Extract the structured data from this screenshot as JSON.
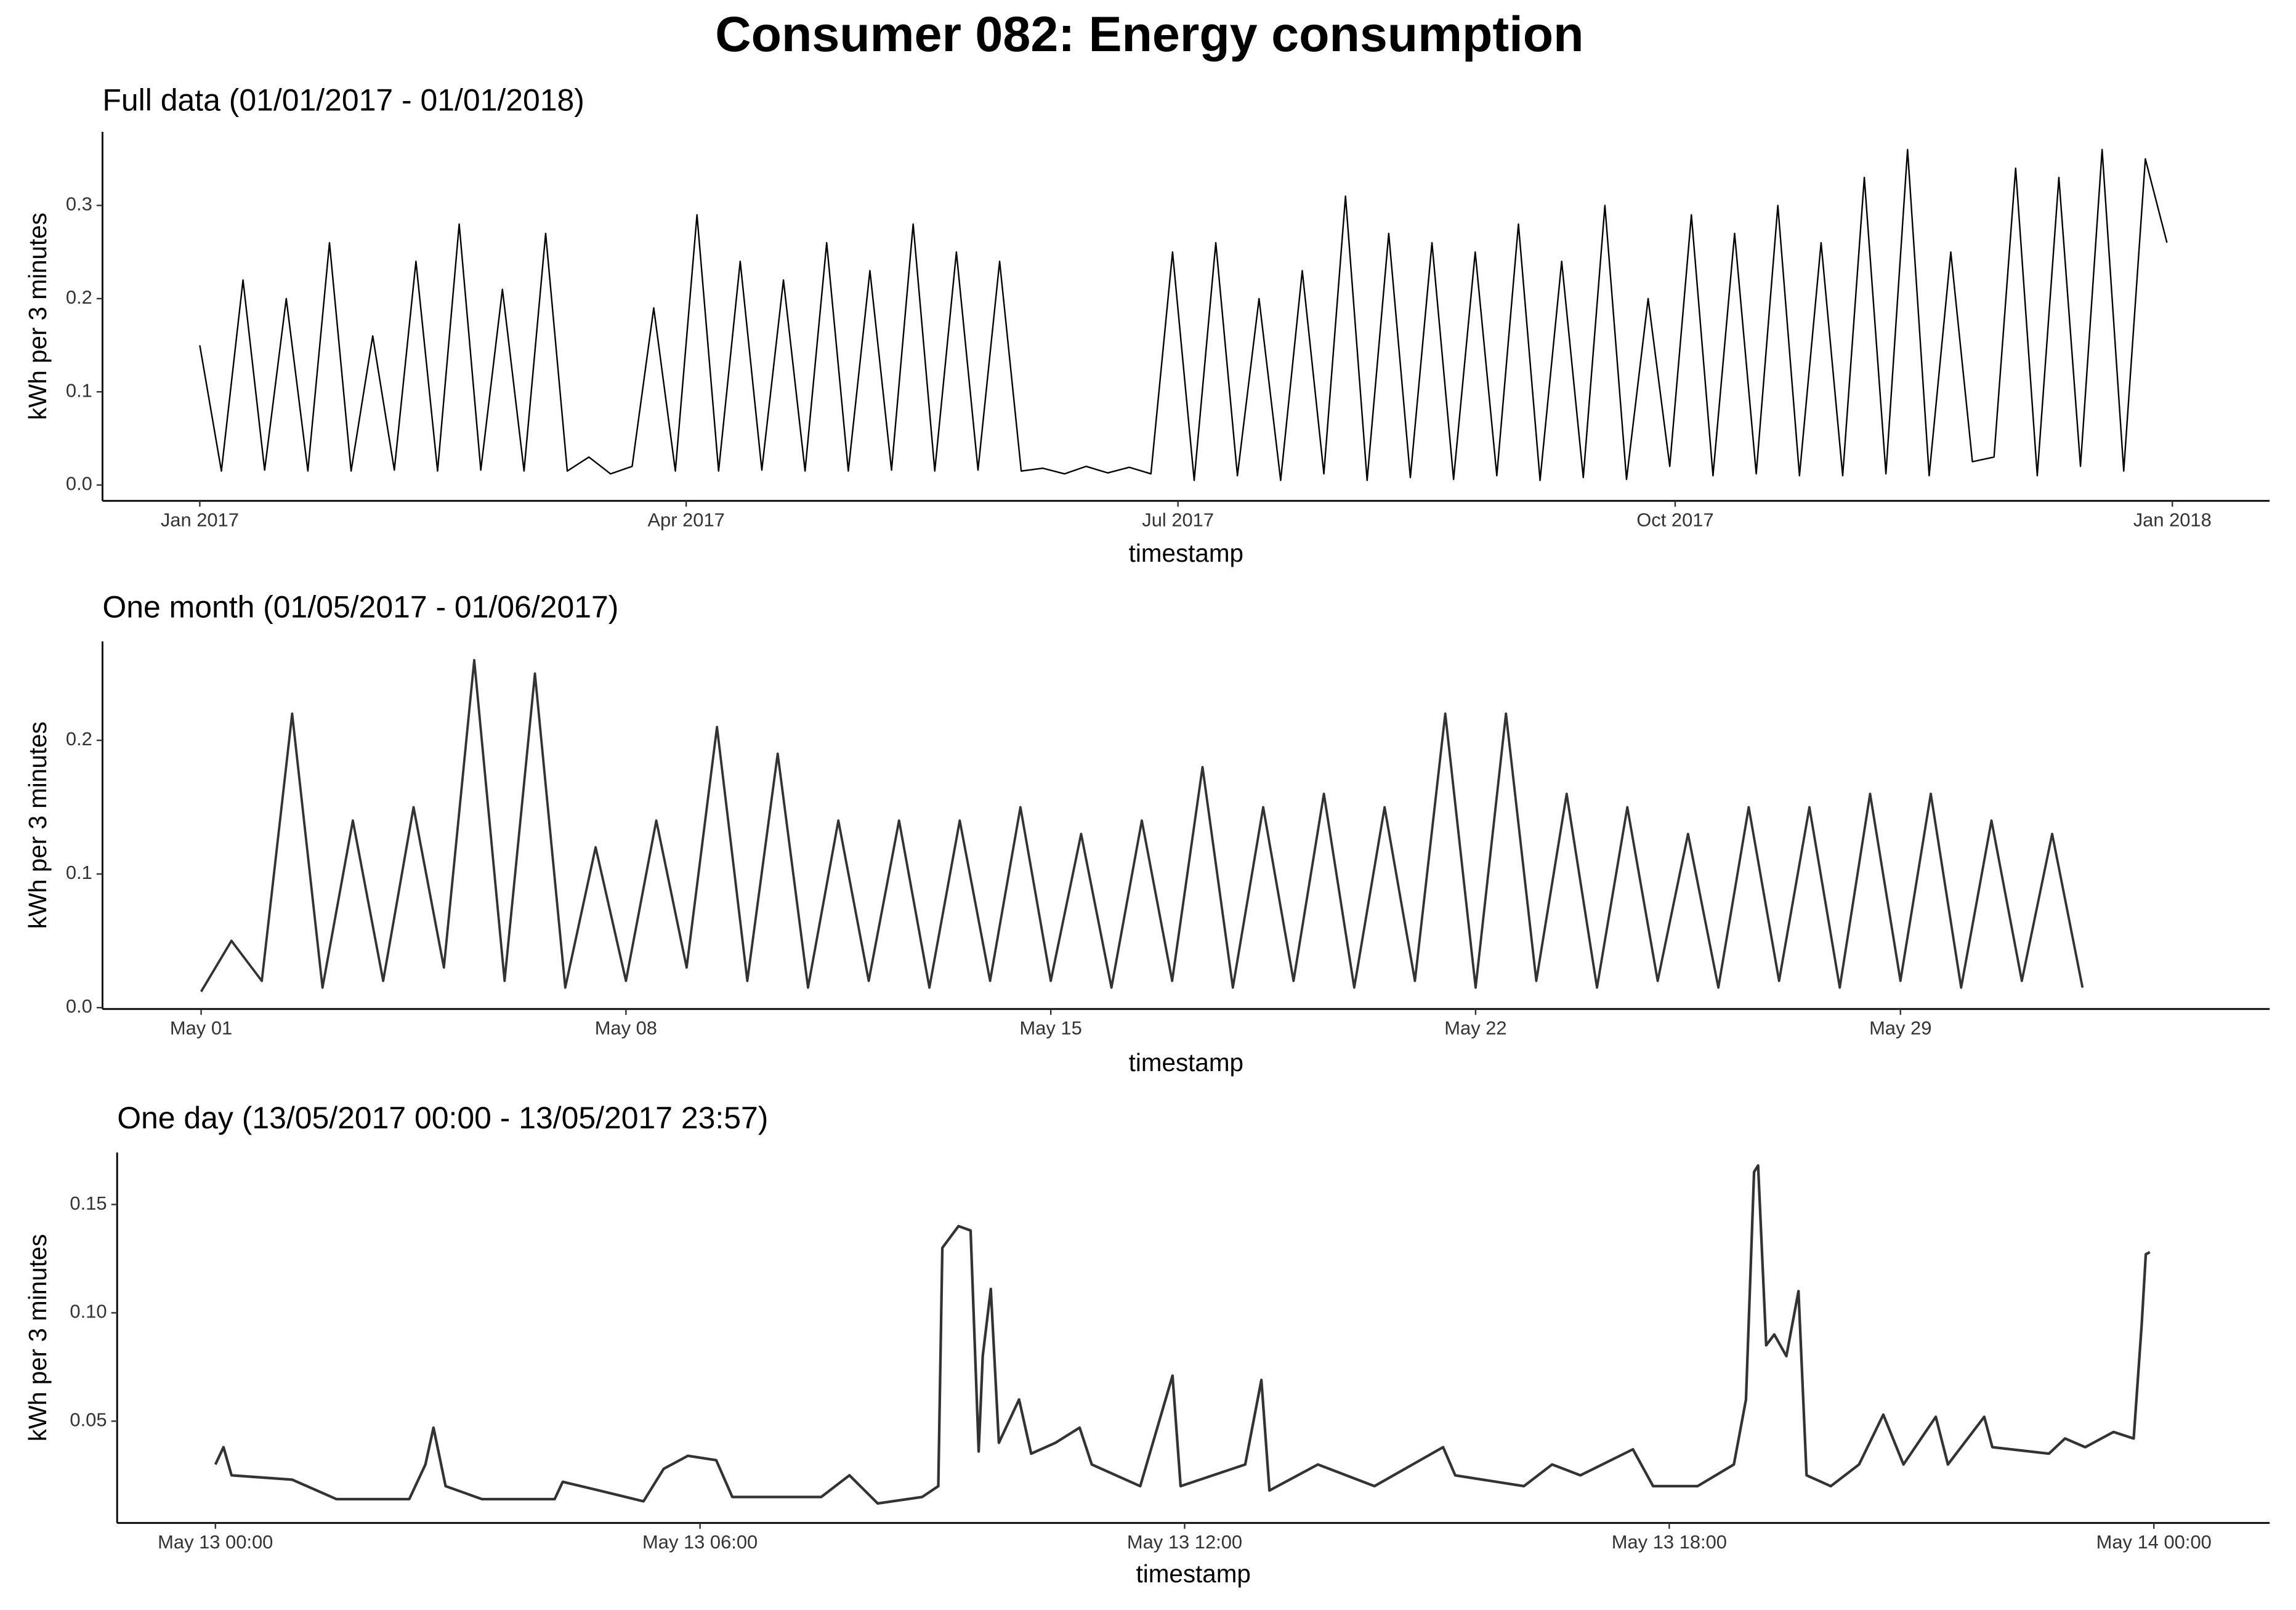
{
  "title": "Consumer 082: Energy consumption",
  "chart_data": [
    {
      "type": "line",
      "title": "Full data (01/01/2017 - 01/01/2018)",
      "xlabel": "timestamp",
      "ylabel": "kWh per 3 minutes",
      "color": "#000000",
      "x": [
        "2017-01-01",
        "2017-01-05",
        "2017-01-09",
        "2017-01-13",
        "2017-01-17",
        "2017-01-21",
        "2017-01-25",
        "2017-01-29",
        "2017-02-02",
        "2017-02-06",
        "2017-02-10",
        "2017-02-14",
        "2017-02-18",
        "2017-02-22",
        "2017-02-26",
        "2017-03-02",
        "2017-03-06",
        "2017-03-10",
        "2017-03-14",
        "2017-03-18",
        "2017-03-22",
        "2017-03-26",
        "2017-03-30",
        "2017-04-03",
        "2017-04-07",
        "2017-04-11",
        "2017-04-15",
        "2017-04-19",
        "2017-04-23",
        "2017-04-27",
        "2017-05-01",
        "2017-05-05",
        "2017-05-09",
        "2017-05-13",
        "2017-05-17",
        "2017-05-21",
        "2017-05-25",
        "2017-05-29",
        "2017-06-02",
        "2017-06-06",
        "2017-06-10",
        "2017-06-14",
        "2017-06-18",
        "2017-06-22",
        "2017-06-26",
        "2017-06-30",
        "2017-07-04",
        "2017-07-08",
        "2017-07-12",
        "2017-07-16",
        "2017-07-20",
        "2017-07-24",
        "2017-07-28",
        "2017-08-01",
        "2017-08-05",
        "2017-08-09",
        "2017-08-13",
        "2017-08-17",
        "2017-08-21",
        "2017-08-25",
        "2017-08-29",
        "2017-09-02",
        "2017-09-06",
        "2017-09-10",
        "2017-09-14",
        "2017-09-18",
        "2017-09-22",
        "2017-09-26",
        "2017-09-30",
        "2017-10-04",
        "2017-10-08",
        "2017-10-12",
        "2017-10-16",
        "2017-10-20",
        "2017-10-24",
        "2017-10-28",
        "2017-11-01",
        "2017-11-05",
        "2017-11-09",
        "2017-11-13",
        "2017-11-17",
        "2017-11-21",
        "2017-11-25",
        "2017-11-29",
        "2017-12-03",
        "2017-12-07",
        "2017-12-11",
        "2017-12-15",
        "2017-12-19",
        "2017-12-23",
        "2017-12-27",
        "2017-12-31"
      ],
      "values": [
        0.15,
        0.015,
        0.22,
        0.016,
        0.2,
        0.015,
        0.26,
        0.015,
        0.16,
        0.016,
        0.24,
        0.015,
        0.28,
        0.016,
        0.21,
        0.015,
        0.27,
        0.015,
        0.03,
        0.012,
        0.02,
        0.19,
        0.015,
        0.29,
        0.015,
        0.24,
        0.016,
        0.22,
        0.015,
        0.26,
        0.015,
        0.23,
        0.016,
        0.28,
        0.015,
        0.25,
        0.016,
        0.24,
        0.015,
        0.018,
        0.012,
        0.02,
        0.013,
        0.019,
        0.012,
        0.25,
        0.005,
        0.26,
        0.01,
        0.2,
        0.005,
        0.23,
        0.012,
        0.31,
        0.005,
        0.27,
        0.008,
        0.26,
        0.006,
        0.25,
        0.01,
        0.28,
        0.005,
        0.24,
        0.008,
        0.3,
        0.006,
        0.2,
        0.02,
        0.29,
        0.01,
        0.27,
        0.012,
        0.3,
        0.01,
        0.26,
        0.01,
        0.33,
        0.012,
        0.36,
        0.01,
        0.25,
        0.025,
        0.03,
        0.34,
        0.01,
        0.33,
        0.02,
        0.36,
        0.015,
        0.35,
        0.26
      ],
      "xlim": [
        "2016-12-14",
        "2018-01-19"
      ],
      "xticks": [
        {
          "value": "2017-01-01",
          "label": "Jan 2017"
        },
        {
          "value": "2017-04-01",
          "label": "Apr 2017"
        },
        {
          "value": "2017-07-01",
          "label": "Jul 2017"
        },
        {
          "value": "2017-10-01",
          "label": "Oct 2017"
        },
        {
          "value": "2018-01-01",
          "label": "Jan 2018"
        }
      ],
      "ylim": [
        -0.017,
        0.379
      ],
      "yticks": [
        {
          "value": 0,
          "label": "0.0"
        },
        0.1,
        0.2,
        0.3
      ]
    },
    {
      "type": "line",
      "title": "One month (01/05/2017 - 01/06/2017)",
      "xlabel": "timestamp",
      "ylabel": "kWh per 3 minutes",
      "color": "#333333",
      "x": [
        "2017-05-01 00:00",
        "2017-05-01 12:00",
        "2017-05-02 00:00",
        "2017-05-02 12:00",
        "2017-05-03 00:00",
        "2017-05-03 12:00",
        "2017-05-04 00:00",
        "2017-05-04 12:00",
        "2017-05-05 00:00",
        "2017-05-05 12:00",
        "2017-05-06 00:00",
        "2017-05-06 12:00",
        "2017-05-07 00:00",
        "2017-05-07 12:00",
        "2017-05-08 00:00",
        "2017-05-08 12:00",
        "2017-05-09 00:00",
        "2017-05-09 12:00",
        "2017-05-10 00:00",
        "2017-05-10 12:00",
        "2017-05-11 00:00",
        "2017-05-11 12:00",
        "2017-05-12 00:00",
        "2017-05-12 12:00",
        "2017-05-13 00:00",
        "2017-05-13 12:00",
        "2017-05-14 00:00",
        "2017-05-14 12:00",
        "2017-05-15 00:00",
        "2017-05-15 12:00",
        "2017-05-16 00:00",
        "2017-05-16 12:00",
        "2017-05-17 00:00",
        "2017-05-17 12:00",
        "2017-05-18 00:00",
        "2017-05-18 12:00",
        "2017-05-19 00:00",
        "2017-05-19 12:00",
        "2017-05-20 00:00",
        "2017-05-20 12:00",
        "2017-05-21 00:00",
        "2017-05-21 12:00",
        "2017-05-22 00:00",
        "2017-05-22 12:00",
        "2017-05-23 00:00",
        "2017-05-23 12:00",
        "2017-05-24 00:00",
        "2017-05-24 12:00",
        "2017-05-25 00:00",
        "2017-05-25 12:00",
        "2017-05-26 00:00",
        "2017-05-26 12:00",
        "2017-05-27 00:00",
        "2017-05-27 12:00",
        "2017-05-28 00:00",
        "2017-05-28 12:00",
        "2017-05-29 00:00",
        "2017-05-29 12:00",
        "2017-05-30 00:00",
        "2017-05-30 12:00",
        "2017-05-31 00:00",
        "2017-05-31 12:00",
        "2017-06-01 00:00"
      ],
      "values": [
        0.012,
        0.05,
        0.02,
        0.22,
        0.015,
        0.14,
        0.02,
        0.15,
        0.03,
        0.26,
        0.02,
        0.25,
        0.015,
        0.12,
        0.02,
        0.14,
        0.03,
        0.21,
        0.02,
        0.19,
        0.015,
        0.14,
        0.02,
        0.14,
        0.015,
        0.14,
        0.02,
        0.15,
        0.02,
        0.13,
        0.015,
        0.14,
        0.02,
        0.18,
        0.015,
        0.15,
        0.02,
        0.16,
        0.015,
        0.15,
        0.02,
        0.22,
        0.015,
        0.22,
        0.02,
        0.16,
        0.015,
        0.15,
        0.02,
        0.13,
        0.015,
        0.15,
        0.02,
        0.15,
        0.015,
        0.16,
        0.02,
        0.16,
        0.015,
        0.14,
        0.02,
        0.13,
        0.015
      ],
      "xlim": [
        "2017-04-29 09:00",
        "2017-06-04 02:00"
      ],
      "xticks": [
        {
          "value": "2017-05-01 00:00",
          "label": "May 01"
        },
        {
          "value": "2017-05-08 00:00",
          "label": "May 08"
        },
        {
          "value": "2017-05-15 00:00",
          "label": "May 15"
        },
        {
          "value": "2017-05-22 00:00",
          "label": "May 22"
        },
        {
          "value": "2017-05-29 00:00",
          "label": "May 29"
        }
      ],
      "ylim": [
        -0.001,
        0.274
      ],
      "yticks": [
        {
          "value": 0,
          "label": "0.0"
        },
        0.1,
        0.2
      ]
    },
    {
      "type": "line",
      "title": "One day (13/05/2017 00:00 - 13/05/2017 23:57)",
      "xlabel": "timestamp",
      "ylabel": "kWh per 3 minutes",
      "color": "#333333",
      "x": [
        "2017-05-13 00:00",
        "2017-05-13 00:06",
        "2017-05-13 00:12",
        "2017-05-13 00:57",
        "2017-05-13 01:30",
        "2017-05-13 02:24",
        "2017-05-13 02:36",
        "2017-05-13 02:42",
        "2017-05-13 02:51",
        "2017-05-13 03:18",
        "2017-05-13 04:12",
        "2017-05-13 04:18",
        "2017-05-13 04:45",
        "2017-05-13 05:18",
        "2017-05-13 05:33",
        "2017-05-13 05:51",
        "2017-05-13 06:12",
        "2017-05-13 06:24",
        "2017-05-13 07:30",
        "2017-05-13 07:51",
        "2017-05-13 08:12",
        "2017-05-13 08:45",
        "2017-05-13 08:57",
        "2017-05-13 09:00",
        "2017-05-13 09:12",
        "2017-05-13 09:21",
        "2017-05-13 09:27",
        "2017-05-13 09:30",
        "2017-05-13 09:36",
        "2017-05-13 09:42",
        "2017-05-13 09:57",
        "2017-05-13 10:06",
        "2017-05-13 10:24",
        "2017-05-13 10:42",
        "2017-05-13 10:51",
        "2017-05-13 11:27",
        "2017-05-13 11:51",
        "2017-05-13 11:57",
        "2017-05-13 12:45",
        "2017-05-13 12:57",
        "2017-05-13 13:03",
        "2017-05-13 13:39",
        "2017-05-13 14:21",
        "2017-05-13 15:12",
        "2017-05-13 15:21",
        "2017-05-13 16:12",
        "2017-05-13 16:33",
        "2017-05-13 16:54",
        "2017-05-13 17:33",
        "2017-05-13 17:48",
        "2017-05-13 18:21",
        "2017-05-13 18:48",
        "2017-05-13 18:57",
        "2017-05-13 19:03",
        "2017-05-13 19:06",
        "2017-05-13 19:12",
        "2017-05-13 19:18",
        "2017-05-13 19:27",
        "2017-05-13 19:36",
        "2017-05-13 19:42",
        "2017-05-13 20:00",
        "2017-05-13 20:21",
        "2017-05-13 20:39",
        "2017-05-13 20:54",
        "2017-05-13 21:18",
        "2017-05-13 21:27",
        "2017-05-13 21:54",
        "2017-05-13 22:00",
        "2017-05-13 22:42",
        "2017-05-13 22:54",
        "2017-05-13 23:09",
        "2017-05-13 23:30",
        "2017-05-13 23:45",
        "2017-05-13 23:51",
        "2017-05-13 23:54",
        "2017-05-13 23:57"
      ],
      "values": [
        0.03,
        0.038,
        0.025,
        0.023,
        0.014,
        0.014,
        0.03,
        0.047,
        0.02,
        0.014,
        0.014,
        0.022,
        0.018,
        0.013,
        0.028,
        0.034,
        0.032,
        0.015,
        0.015,
        0.025,
        0.012,
        0.015,
        0.02,
        0.13,
        0.14,
        0.138,
        0.036,
        0.08,
        0.111,
        0.04,
        0.06,
        0.035,
        0.04,
        0.047,
        0.03,
        0.02,
        0.071,
        0.02,
        0.03,
        0.069,
        0.018,
        0.03,
        0.02,
        0.038,
        0.025,
        0.02,
        0.03,
        0.025,
        0.037,
        0.02,
        0.02,
        0.03,
        0.06,
        0.165,
        0.168,
        0.085,
        0.09,
        0.08,
        0.11,
        0.025,
        0.02,
        0.03,
        0.053,
        0.03,
        0.052,
        0.03,
        0.052,
        0.038,
        0.035,
        0.042,
        0.038,
        0.045,
        0.042,
        0.095,
        0.127,
        0.128
      ],
      "xlim": [
        "2017-05-12 22:47",
        "2017-05-14 01:26"
      ],
      "xticks": [
        {
          "value": "2017-05-13 00:00",
          "label": "May 13 00:00"
        },
        {
          "value": "2017-05-13 06:00",
          "label": "May 13 06:00"
        },
        {
          "value": "2017-05-13 12:00",
          "label": "May 13 12:00"
        },
        {
          "value": "2017-05-13 18:00",
          "label": "May 13 18:00"
        },
        {
          "value": "2017-05-14 00:00",
          "label": "May 14 00:00"
        }
      ],
      "ylim": [
        0.003,
        0.174
      ],
      "yticks": [
        0.05,
        {
          "value": 0.1,
          "label": "0.10"
        },
        0.15
      ]
    }
  ]
}
